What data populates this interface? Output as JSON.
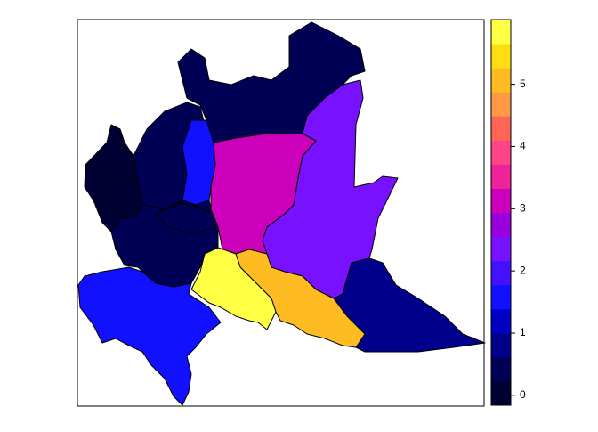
{
  "chart_data": {
    "type": "choropleth",
    "values": [
      0,
      0.4,
      0.4,
      1.5,
      3.1,
      2.2,
      0.5,
      0.4,
      1.5,
      0.8,
      5.1,
      5.9
    ],
    "colorbar": {
      "lim": [
        -0.16,
        6.04
      ],
      "ticks": [
        0,
        1,
        2,
        3,
        4,
        5
      ],
      "colors": [
        "#000033",
        "#000055",
        "#00008b",
        "#0000c4",
        "#1111ff",
        "#4411ff",
        "#7711ff",
        "#9900dd",
        "#cc00bb",
        "#ee2299",
        "#ff4488",
        "#ff6655",
        "#ff9944",
        "#ffbb22",
        "#ffdd11",
        "#ffff44"
      ]
    }
  }
}
